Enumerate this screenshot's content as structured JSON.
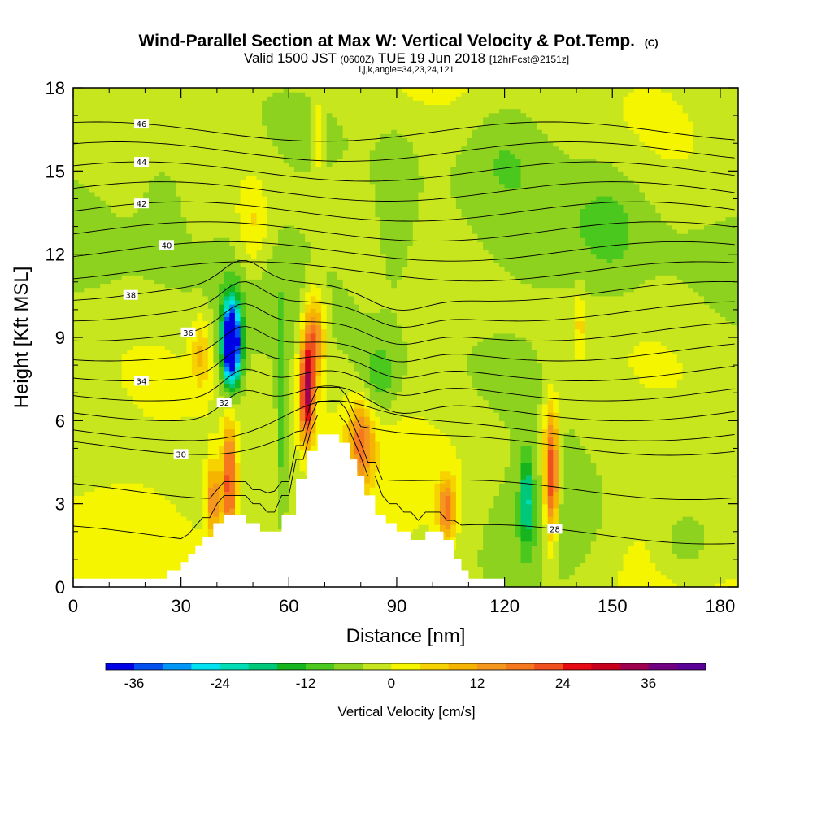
{
  "title": "Wind-Parallel Section at Max W: Vertical Velocity & Pot.Temp.",
  "title_mark": "(C)",
  "subtitle": {
    "prefix": "Valid 1500 JST",
    "utc": "(0600Z)",
    "date": "TUE 19 Jun 2018",
    "forecast": "[12hrFcst@2151z]"
  },
  "indices_line": "i,j,k,angle=34,23,24,121",
  "chart_data": {
    "type": "heatmap",
    "xlabel": "Distance [nm]",
    "ylabel": "Height [Kft MSL]",
    "xlim": [
      0,
      185
    ],
    "ylim": [
      0,
      18
    ],
    "x_ticks": [
      0,
      30,
      60,
      90,
      120,
      150,
      180
    ],
    "y_ticks": [
      0,
      3,
      6,
      9,
      12,
      15,
      18
    ],
    "colorbar": {
      "label": "Vertical Velocity [cm/s]",
      "min": -40,
      "max": 44,
      "step": 4,
      "tick_values": [
        -36,
        -24,
        -12,
        0,
        12,
        24,
        36
      ],
      "colors": [
        "#0000e6",
        "#0050f0",
        "#0096f5",
        "#00e1f0",
        "#00dcb4",
        "#00c87a",
        "#16b41e",
        "#4bc81e",
        "#8cd21e",
        "#c8e61e",
        "#f5f500",
        "#f5d200",
        "#f5b400",
        "#f5961e",
        "#f5781e",
        "#f0501e",
        "#e60a14",
        "#c8001e",
        "#a00050",
        "#700080",
        "#5a0096"
      ]
    },
    "terrain": [
      [
        0,
        0.3
      ],
      [
        26,
        0.3
      ],
      [
        26,
        0.6
      ],
      [
        30,
        0.6
      ],
      [
        30,
        0.9
      ],
      [
        32,
        0.9
      ],
      [
        32,
        1.2
      ],
      [
        34,
        1.2
      ],
      [
        34,
        1.5
      ],
      [
        36,
        1.5
      ],
      [
        36,
        1.8
      ],
      [
        39,
        1.8
      ],
      [
        39,
        2.3
      ],
      [
        42,
        2.3
      ],
      [
        42,
        2.6
      ],
      [
        48,
        2.6
      ],
      [
        48,
        2.3
      ],
      [
        52,
        2.3
      ],
      [
        52,
        2.0
      ],
      [
        58,
        2.0
      ],
      [
        58,
        2.6
      ],
      [
        62,
        2.6
      ],
      [
        62,
        3.9
      ],
      [
        65,
        3.9
      ],
      [
        65,
        4.9
      ],
      [
        68,
        4.9
      ],
      [
        68,
        5.5
      ],
      [
        74,
        5.5
      ],
      [
        74,
        5.2
      ],
      [
        77,
        5.2
      ],
      [
        77,
        4.6
      ],
      [
        79,
        4.6
      ],
      [
        79,
        4.0
      ],
      [
        81,
        4.0
      ],
      [
        81,
        3.3
      ],
      [
        84,
        3.3
      ],
      [
        84,
        2.6
      ],
      [
        87,
        2.6
      ],
      [
        87,
        2.3
      ],
      [
        90,
        2.3
      ],
      [
        90,
        2.0
      ],
      [
        94,
        2.0
      ],
      [
        94,
        1.7
      ],
      [
        98,
        1.7
      ],
      [
        98,
        2.0
      ],
      [
        103,
        2.0
      ],
      [
        103,
        1.7
      ],
      [
        106,
        1.7
      ],
      [
        106,
        1.0
      ],
      [
        108,
        1.0
      ],
      [
        108,
        0.6
      ],
      [
        110,
        0.6
      ],
      [
        110,
        0.3
      ],
      [
        120,
        0.3
      ],
      [
        120,
        0
      ],
      [
        0,
        0
      ]
    ],
    "w_features": [
      {
        "x": 44,
        "y": 8.8,
        "w": -38,
        "sx": 2.0,
        "sy": 1.2
      },
      {
        "x": 44,
        "y": 8.8,
        "w": -20,
        "sx": 3.2,
        "sy": 1.9
      },
      {
        "x": 126,
        "y": 3.2,
        "w": -16,
        "sx": 1.6,
        "sy": 1.6
      },
      {
        "x": 39,
        "y": 3.2,
        "w": 18,
        "sx": 2.0,
        "sy": 1.4
      },
      {
        "x": 43.5,
        "y": 3.8,
        "w": 26,
        "sx": 2.0,
        "sy": 2.2
      },
      {
        "x": 65,
        "y": 7.0,
        "w": 34,
        "sx": 2.0,
        "sy": 1.7
      },
      {
        "x": 67,
        "y": 9.0,
        "w": 22,
        "sx": 3.0,
        "sy": 1.6
      },
      {
        "x": 133,
        "y": 4.0,
        "w": 30,
        "sx": 2.0,
        "sy": 2.4
      },
      {
        "x": 80,
        "y": 5.2,
        "w": 18,
        "sx": 3.5,
        "sy": 1.6
      },
      {
        "x": 104,
        "y": 2.8,
        "w": 20,
        "sx": 2.5,
        "sy": 1.1
      },
      {
        "x": 35.5,
        "y": 8.5,
        "w": 10,
        "sx": 2.5,
        "sy": 1.3
      },
      {
        "x": 50,
        "y": 13.0,
        "w": 8,
        "sx": 4.5,
        "sy": 1.8
      },
      {
        "x": 141,
        "y": 9.5,
        "w": 9,
        "sx": 1.3,
        "sy": 1.2
      },
      {
        "x": 68,
        "y": 16.3,
        "w": 7,
        "sx": 1.2,
        "sy": 1.6
      },
      {
        "x": 58,
        "y": 6.5,
        "w": -10,
        "sx": 1.5,
        "sy": 3.0
      },
      {
        "x": 85,
        "y": 7.5,
        "w": -9,
        "sx": 6.0,
        "sy": 1.4
      },
      {
        "x": 135,
        "y": 2.5,
        "w": -9,
        "sx": 20.0,
        "sy": 2.3
      },
      {
        "x": 170,
        "y": 1.6,
        "w": -7,
        "sx": 8.0,
        "sy": 1.2
      },
      {
        "x": 90,
        "y": 13.5,
        "w": -5,
        "sx": 6.0,
        "sy": 3.0
      },
      {
        "x": 150,
        "y": 13.0,
        "w": -5,
        "sx": 10.0,
        "sy": 2.5
      },
      {
        "x": 120,
        "y": 16.0,
        "w": -4,
        "sx": 10.0,
        "sy": 2.0
      },
      {
        "x": 25,
        "y": 14.0,
        "w": -5,
        "sx": 6.0,
        "sy": 2.0
      }
    ],
    "theta_levels": [
      {
        "value": 28,
        "label": "28",
        "label_x": 134
      },
      {
        "value": 29
      },
      {
        "value": 30,
        "label": "30",
        "label_x": 30
      },
      {
        "value": 31
      },
      {
        "value": 32,
        "label": "32",
        "label_x": 42
      },
      {
        "value": 33
      },
      {
        "value": 34,
        "label": "34",
        "label_x": 19
      },
      {
        "value": 35
      },
      {
        "value": 36,
        "label": "36",
        "label_x": 32
      },
      {
        "value": 37
      },
      {
        "value": 38,
        "label": "38",
        "label_x": 16
      },
      {
        "value": 39
      },
      {
        "value": 40,
        "label": "40",
        "label_x": 26
      },
      {
        "value": 41
      },
      {
        "value": 42,
        "label": "42",
        "label_x": 19
      },
      {
        "value": 43
      },
      {
        "value": 44,
        "label": "44",
        "label_x": 19
      },
      {
        "value": 45
      },
      {
        "value": 46,
        "label": "46",
        "label_x": 19
      }
    ]
  }
}
